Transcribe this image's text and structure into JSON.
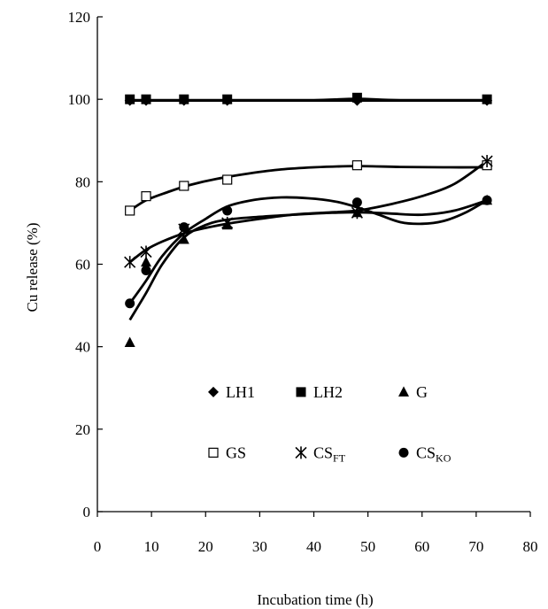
{
  "chart_data": {
    "type": "scatter",
    "title": "",
    "xlabel": "Incubation time (h)",
    "ylabel": "Cu release (%)",
    "xlim": [
      0,
      80
    ],
    "ylim": [
      0,
      120
    ],
    "xticks": [
      "0",
      "10",
      "20",
      "30",
      "40",
      "50",
      "60",
      "70",
      "80"
    ],
    "yticks": [
      "0",
      "20",
      "40",
      "60",
      "80",
      "100",
      "120"
    ],
    "grid": false,
    "legend_position": "bottom-center",
    "series": [
      {
        "name": "LH1",
        "sub": "",
        "marker": "diamond",
        "color": "#000000",
        "x": [
          6,
          9,
          16,
          24,
          48,
          72
        ],
        "y": [
          99.7,
          99.7,
          99.7,
          99.7,
          99.7,
          99.7
        ],
        "trend_x": [
          6,
          72
        ],
        "trend_y": [
          99.7,
          99.7
        ]
      },
      {
        "name": "LH2",
        "sub": "",
        "marker": "square",
        "color": "#000000",
        "x": [
          6,
          9,
          16,
          24,
          48,
          72
        ],
        "y": [
          100,
          100,
          100,
          100,
          100.4,
          100
        ],
        "trend_x": [
          6,
          16,
          30,
          40,
          48,
          56,
          72
        ],
        "trend_y": [
          99.8,
          99.8,
          99.8,
          99.8,
          100.1,
          99.8,
          99.8
        ]
      },
      {
        "name": "G",
        "sub": "",
        "marker": "triangle",
        "color": "#000000",
        "x": [
          6,
          9,
          16,
          24,
          48,
          72
        ],
        "y": [
          41,
          60.5,
          66,
          69.5,
          72.5,
          75.5
        ],
        "trend_x": [
          6,
          9,
          12,
          16,
          20,
          24,
          30,
          36,
          42,
          48,
          54,
          60,
          66,
          72
        ],
        "trend_y": [
          46.5,
          53,
          60,
          66.5,
          69.5,
          70.8,
          71.5,
          72,
          72.4,
          72.6,
          72.3,
          72,
          73,
          75.5
        ]
      },
      {
        "name": "GS",
        "sub": "",
        "marker": "open-square",
        "color": "#000000",
        "x": [
          6,
          9,
          16,
          24,
          48,
          72
        ],
        "y": [
          73,
          76.5,
          79,
          80.5,
          84,
          84
        ],
        "trend_x": [
          6,
          9,
          13,
          17,
          22,
          28,
          34,
          40,
          48,
          56,
          64,
          72
        ],
        "trend_y": [
          73,
          75.5,
          77.5,
          79.2,
          80.7,
          82,
          83,
          83.5,
          83.8,
          83.6,
          83.5,
          83.5
        ]
      },
      {
        "name": "CS",
        "sub": "FT",
        "marker": "asterisk",
        "color": "#000000",
        "x": [
          6,
          9,
          16,
          24,
          48,
          72
        ],
        "y": [
          60.5,
          63,
          68.5,
          70,
          72.5,
          85
        ],
        "trend_x": [
          6,
          9,
          12,
          16,
          20,
          24,
          30,
          36,
          42,
          48,
          54,
          60,
          66,
          72
        ],
        "trend_y": [
          60.5,
          63.5,
          65.5,
          67.5,
          68.8,
          69.8,
          71,
          72,
          72.5,
          73,
          74.5,
          76.5,
          79.5,
          85
        ]
      },
      {
        "name": "CS",
        "sub": "KO",
        "marker": "circle",
        "color": "#000000",
        "x": [
          6,
          9,
          16,
          24,
          48,
          72
        ],
        "y": [
          50.5,
          58.5,
          69,
          73,
          75,
          75.5
        ],
        "trend_x": [
          6,
          9,
          12,
          16,
          20,
          24,
          29,
          34,
          39,
          44,
          48,
          52,
          56,
          60,
          64,
          68,
          72
        ],
        "trend_y": [
          50.5,
          56,
          62,
          67.5,
          71,
          74,
          75.6,
          76.2,
          76,
          75.2,
          73.8,
          72,
          70.2,
          69.8,
          70.5,
          72.5,
          75.5
        ]
      }
    ]
  }
}
